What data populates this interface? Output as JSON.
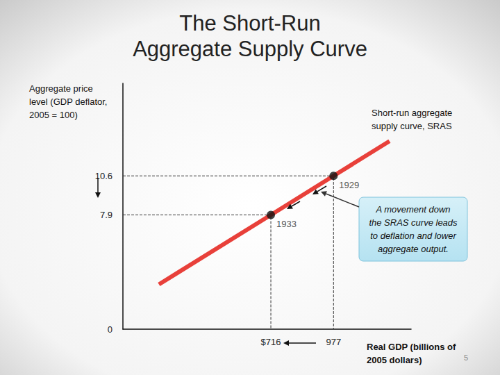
{
  "page_number": "5",
  "chart_data": {
    "type": "line",
    "title": "The Short-Run\nAggregate Supply Curve",
    "x_label": "Real GDP (billions of\n2005 dollars)",
    "y_label": "Aggregate price\nlevel (GDP deflator,\n2005 = 100)",
    "series": [
      {
        "name": "Short-run aggregate\nsupply curve, SRAS",
        "color": "#e8403a",
        "x": [
          250,
          716,
          977,
          1210
        ],
        "values": [
          3.1,
          7.9,
          10.6,
          13.0
        ]
      }
    ],
    "points": [
      {
        "label": "1929",
        "x": 977,
        "y": 10.6
      },
      {
        "label": "1933",
        "x": 716,
        "y": 7.9
      }
    ],
    "annotations": [
      "A movement down\nthe SRAS curve leads\nto deflation and lower\naggregate output."
    ],
    "xlim": [
      100,
      1300
    ],
    "xticks": [
      {
        "value": 716,
        "label": "$716"
      },
      977
    ],
    "ylim": [
      0,
      17
    ],
    "yticks": [
      0,
      7.9,
      10.6
    ],
    "grid": false
  }
}
